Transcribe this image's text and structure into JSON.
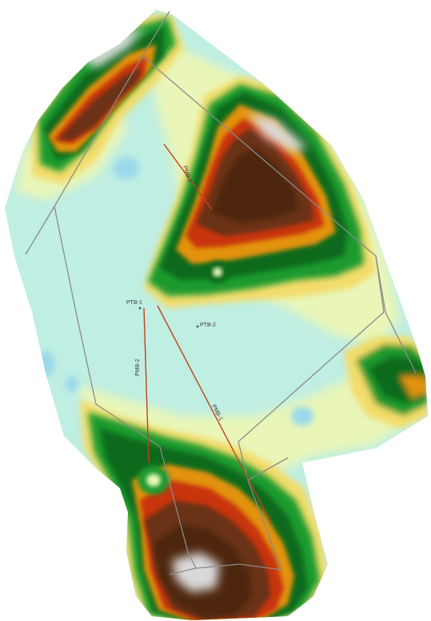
{
  "map": {
    "palette": {
      "low": "#bfeee2",
      "mid_low": "#e9f6b8",
      "yellow": "#f3dc6a",
      "green": "#1f9a2e",
      "dark_green": "#0d6a1f",
      "orange": "#e2920e",
      "red": "#c8350a",
      "brown": "#6a3214",
      "dark_brown": "#4d2611",
      "highest": "#d9d9d9",
      "water": "#9ad8ec",
      "boundary": "#8b8b8b",
      "profile_line": "#c0431c"
    },
    "labels": {
      "ptb_1": "PTB-1",
      "ptb_2": "PTB-2",
      "profile_1": "PMB-1",
      "profile_2": "PMB-2",
      "profile_3": "PMB-3"
    }
  }
}
